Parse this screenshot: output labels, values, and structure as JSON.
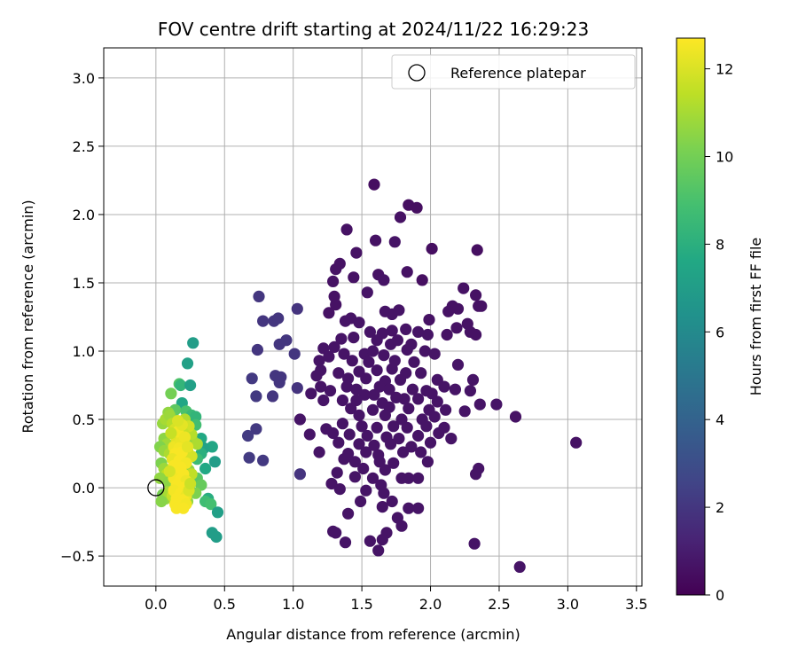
{
  "chart_data": {
    "type": "scatter",
    "title": "FOV centre drift starting at 2024/11/22 16:29:23",
    "xlabel": "Angular distance from reference (arcmin)",
    "ylabel": "Rotation from reference (arcmin)",
    "colorbar_label": "Hours from first FF file",
    "xlim": [
      -0.38,
      3.54
    ],
    "ylim": [
      -0.72,
      3.22
    ],
    "clim": [
      0,
      12.7
    ],
    "xticks": [
      0.0,
      0.5,
      1.0,
      1.5,
      2.0,
      2.5,
      3.0,
      3.5
    ],
    "xtick_labels": [
      "0.0",
      "0.5",
      "1.0",
      "1.5",
      "2.0",
      "2.5",
      "3.0",
      "3.5"
    ],
    "yticks": [
      -0.5,
      0.0,
      0.5,
      1.0,
      1.5,
      2.0,
      2.5,
      3.0
    ],
    "ytick_labels": [
      "−0.5",
      "0.0",
      "0.5",
      "1.0",
      "1.5",
      "2.0",
      "2.5",
      "3.0"
    ],
    "cticks": [
      0,
      2,
      4,
      6,
      8,
      10,
      12
    ],
    "ctick_labels": [
      "0",
      "2",
      "4",
      "6",
      "8",
      "10",
      "12"
    ],
    "colormap": "viridis",
    "grid": true,
    "legend": {
      "position": "top-right",
      "entries": [
        "Reference platepar"
      ]
    },
    "reference": {
      "x": 0.0,
      "y": 0.0
    },
    "points": [
      [
        1.59,
        2.22,
        0.5
      ],
      [
        1.84,
        2.07,
        0.5
      ],
      [
        1.9,
        2.05,
        0.5
      ],
      [
        1.78,
        1.98,
        0.6
      ],
      [
        2.01,
        1.75,
        0.5
      ],
      [
        2.34,
        1.74,
        0.5
      ],
      [
        1.39,
        1.89,
        0.6
      ],
      [
        1.46,
        1.72,
        0.6
      ],
      [
        1.6,
        1.81,
        0.6
      ],
      [
        1.74,
        1.8,
        0.7
      ],
      [
        1.34,
        1.64,
        0.6
      ],
      [
        1.31,
        1.6,
        0.6
      ],
      [
        1.62,
        1.56,
        0.6
      ],
      [
        1.66,
        1.52,
        0.7
      ],
      [
        1.44,
        1.54,
        0.6
      ],
      [
        1.29,
        1.51,
        0.6
      ],
      [
        1.83,
        1.58,
        0.6
      ],
      [
        1.94,
        1.52,
        0.5
      ],
      [
        2.24,
        1.46,
        0.6
      ],
      [
        2.33,
        1.41,
        0.6
      ],
      [
        1.54,
        1.43,
        0.7
      ],
      [
        1.3,
        1.4,
        0.6
      ],
      [
        1.31,
        1.34,
        0.6
      ],
      [
        2.16,
        1.33,
        0.6
      ],
      [
        2.35,
        1.33,
        0.6
      ],
      [
        2.2,
        1.31,
        0.6
      ],
      [
        1.77,
        1.3,
        0.7
      ],
      [
        1.67,
        1.29,
        0.7
      ],
      [
        1.72,
        1.27,
        0.7
      ],
      [
        1.26,
        1.28,
        0.6
      ],
      [
        1.42,
        1.24,
        0.7
      ],
      [
        1.38,
        1.22,
        0.7
      ],
      [
        1.48,
        1.21,
        0.7
      ],
      [
        1.99,
        1.23,
        0.6
      ],
      [
        2.27,
        1.2,
        0.6
      ],
      [
        1.56,
        1.14,
        0.7
      ],
      [
        1.65,
        1.13,
        0.7
      ],
      [
        1.72,
        1.15,
        0.7
      ],
      [
        1.82,
        1.16,
        0.7
      ],
      [
        1.91,
        1.14,
        0.7
      ],
      [
        2.12,
        1.12,
        0.6
      ],
      [
        2.19,
        1.17,
        0.6
      ],
      [
        2.33,
        1.12,
        0.6
      ],
      [
        2.29,
        1.14,
        0.6
      ],
      [
        1.35,
        1.09,
        0.7
      ],
      [
        1.44,
        1.1,
        0.7
      ],
      [
        1.61,
        1.08,
        0.7
      ],
      [
        1.71,
        1.05,
        0.7
      ],
      [
        1.76,
        1.08,
        0.7
      ],
      [
        1.86,
        1.05,
        0.7
      ],
      [
        1.98,
        1.12,
        0.7
      ],
      [
        1.3,
        1.03,
        0.7
      ],
      [
        1.22,
        1.02,
        0.7
      ],
      [
        1.37,
        0.98,
        0.7
      ],
      [
        1.52,
        0.98,
        0.7
      ],
      [
        1.58,
        1.0,
        0.7
      ],
      [
        1.66,
        0.97,
        0.7
      ],
      [
        1.83,
        1.01,
        0.7
      ],
      [
        1.96,
        1.0,
        0.7
      ],
      [
        2.03,
        0.98,
        0.7
      ],
      [
        1.26,
        0.96,
        0.7
      ],
      [
        1.19,
        0.93,
        0.7
      ],
      [
        1.43,
        0.93,
        0.7
      ],
      [
        1.55,
        0.92,
        0.7
      ],
      [
        1.74,
        0.93,
        0.7
      ],
      [
        1.88,
        0.92,
        0.7
      ],
      [
        2.2,
        0.9,
        0.7
      ],
      [
        1.2,
        0.86,
        0.7
      ],
      [
        1.33,
        0.84,
        0.7
      ],
      [
        1.48,
        0.85,
        0.7
      ],
      [
        1.61,
        0.86,
        0.7
      ],
      [
        1.72,
        0.87,
        0.7
      ],
      [
        1.82,
        0.84,
        0.7
      ],
      [
        1.93,
        0.84,
        0.7
      ],
      [
        1.17,
        0.82,
        0.7
      ],
      [
        1.4,
        0.8,
        0.7
      ],
      [
        1.53,
        0.8,
        0.7
      ],
      [
        1.67,
        0.78,
        0.7
      ],
      [
        1.78,
        0.79,
        0.7
      ],
      [
        2.05,
        0.79,
        0.7
      ],
      [
        2.31,
        0.79,
        0.7
      ],
      [
        1.2,
        0.74,
        0.7
      ],
      [
        1.39,
        0.74,
        0.7
      ],
      [
        1.46,
        0.72,
        0.7
      ],
      [
        1.63,
        0.74,
        0.7
      ],
      [
        1.7,
        0.72,
        0.7
      ],
      [
        1.87,
        0.72,
        0.7
      ],
      [
        1.97,
        0.71,
        0.7
      ],
      [
        2.1,
        0.74,
        0.7
      ],
      [
        2.18,
        0.72,
        0.7
      ],
      [
        1.27,
        0.71,
        0.7
      ],
      [
        1.52,
        0.68,
        0.7
      ],
      [
        1.59,
        0.68,
        0.7
      ],
      [
        1.75,
        0.66,
        0.7
      ],
      [
        1.81,
        0.65,
        0.7
      ],
      [
        2.01,
        0.69,
        0.7
      ],
      [
        2.29,
        0.71,
        0.7
      ],
      [
        1.13,
        0.69,
        0.7
      ],
      [
        1.36,
        0.64,
        0.7
      ],
      [
        1.46,
        0.64,
        0.7
      ],
      [
        1.65,
        0.62,
        0.7
      ],
      [
        1.91,
        0.65,
        0.7
      ],
      [
        2.05,
        0.63,
        0.7
      ],
      [
        1.22,
        0.64,
        0.7
      ],
      [
        1.42,
        0.58,
        0.7
      ],
      [
        1.58,
        0.57,
        0.7
      ],
      [
        1.7,
        0.59,
        0.7
      ],
      [
        1.84,
        0.58,
        0.7
      ],
      [
        1.99,
        0.57,
        0.7
      ],
      [
        2.11,
        0.57,
        0.7
      ],
      [
        2.25,
        0.56,
        0.7
      ],
      [
        2.36,
        0.61,
        0.7
      ],
      [
        2.48,
        0.61,
        0.7
      ],
      [
        1.48,
        0.53,
        0.7
      ],
      [
        1.67,
        0.53,
        0.7
      ],
      [
        1.79,
        0.5,
        0.7
      ],
      [
        1.94,
        0.5,
        0.7
      ],
      [
        2.03,
        0.52,
        0.7
      ],
      [
        1.05,
        0.5,
        0.7
      ],
      [
        1.12,
        0.39,
        0.7
      ],
      [
        1.24,
        0.43,
        0.7
      ],
      [
        1.36,
        0.47,
        0.7
      ],
      [
        1.5,
        0.45,
        0.7
      ],
      [
        1.61,
        0.44,
        0.7
      ],
      [
        1.73,
        0.45,
        0.7
      ],
      [
        1.83,
        0.44,
        0.7
      ],
      [
        1.97,
        0.45,
        0.7
      ],
      [
        2.1,
        0.44,
        0.7
      ],
      [
        1.29,
        0.4,
        0.7
      ],
      [
        1.41,
        0.39,
        0.7
      ],
      [
        1.54,
        0.38,
        0.7
      ],
      [
        1.68,
        0.37,
        0.7
      ],
      [
        1.77,
        0.36,
        0.7
      ],
      [
        1.91,
        0.38,
        0.7
      ],
      [
        2.06,
        0.4,
        0.7
      ],
      [
        2.15,
        0.36,
        0.7
      ],
      [
        1.33,
        0.33,
        0.7
      ],
      [
        1.48,
        0.32,
        0.7
      ],
      [
        1.59,
        0.31,
        0.7
      ],
      [
        1.71,
        0.32,
        0.7
      ],
      [
        1.86,
        0.3,
        0.7
      ],
      [
        2.0,
        0.33,
        0.7
      ],
      [
        1.19,
        0.26,
        0.7
      ],
      [
        1.4,
        0.25,
        0.7
      ],
      [
        1.53,
        0.26,
        0.7
      ],
      [
        1.62,
        0.24,
        0.7
      ],
      [
        1.8,
        0.26,
        0.7
      ],
      [
        1.93,
        0.26,
        0.7
      ],
      [
        1.37,
        0.21,
        0.7
      ],
      [
        1.45,
        0.19,
        0.7
      ],
      [
        1.63,
        0.19,
        0.7
      ],
      [
        1.73,
        0.18,
        0.7
      ],
      [
        1.98,
        0.19,
        0.7
      ],
      [
        1.51,
        0.14,
        0.7
      ],
      [
        1.67,
        0.13,
        0.7
      ],
      [
        1.32,
        0.11,
        0.7
      ],
      [
        1.45,
        0.08,
        0.7
      ],
      [
        1.58,
        0.07,
        0.7
      ],
      [
        1.84,
        0.07,
        0.7
      ],
      [
        1.91,
        0.07,
        0.7
      ],
      [
        1.79,
        0.07,
        0.7
      ],
      [
        1.28,
        0.03,
        0.7
      ],
      [
        1.64,
        0.02,
        0.7
      ],
      [
        1.34,
        -0.01,
        0.7
      ],
      [
        1.53,
        -0.02,
        0.7
      ],
      [
        1.66,
        -0.04,
        0.7
      ],
      [
        1.49,
        -0.1,
        0.7
      ],
      [
        1.72,
        -0.1,
        0.7
      ],
      [
        1.65,
        -0.14,
        0.7
      ],
      [
        1.84,
        -0.15,
        0.7
      ],
      [
        1.91,
        -0.15,
        0.7
      ],
      [
        1.4,
        -0.19,
        0.7
      ],
      [
        1.76,
        -0.22,
        0.7
      ],
      [
        1.79,
        -0.28,
        0.7
      ],
      [
        1.29,
        -0.32,
        0.7
      ],
      [
        1.31,
        -0.33,
        0.7
      ],
      [
        1.68,
        -0.33,
        0.7
      ],
      [
        1.65,
        -0.38,
        0.7
      ],
      [
        1.56,
        -0.39,
        0.7
      ],
      [
        1.38,
        -0.4,
        0.7
      ],
      [
        1.62,
        -0.46,
        0.7
      ],
      [
        2.32,
        -0.41,
        0.7
      ],
      [
        2.65,
        -0.58,
        0.7
      ],
      [
        3.06,
        0.33,
        0.6
      ],
      [
        2.35,
        0.14,
        0.7
      ],
      [
        2.33,
        0.1,
        0.7
      ],
      [
        2.62,
        0.52,
        0.6
      ],
      [
        2.37,
        1.33,
        0.6
      ],
      [
        2.13,
        1.29,
        0.6
      ],
      [
        0.75,
        1.4,
        2.0
      ],
      [
        0.78,
        1.22,
        2.0
      ],
      [
        0.86,
        1.22,
        2.0
      ],
      [
        0.89,
        1.24,
        2.0
      ],
      [
        1.03,
        1.31,
        1.9
      ],
      [
        0.74,
        1.01,
        2.0
      ],
      [
        0.9,
        1.05,
        2.0
      ],
      [
        0.95,
        1.08,
        2.0
      ],
      [
        1.01,
        0.98,
        2.0
      ],
      [
        0.87,
        0.82,
        2.0
      ],
      [
        0.91,
        0.81,
        2.0
      ],
      [
        0.7,
        0.8,
        2.1
      ],
      [
        0.9,
        0.77,
        2.0
      ],
      [
        0.73,
        0.67,
        2.1
      ],
      [
        0.85,
        0.67,
        2.0
      ],
      [
        1.03,
        0.73,
        1.9
      ],
      [
        0.73,
        0.43,
        2.1
      ],
      [
        0.67,
        0.38,
        2.2
      ],
      [
        0.68,
        0.22,
        2.2
      ],
      [
        0.78,
        0.2,
        2.1
      ],
      [
        1.05,
        0.1,
        1.9
      ],
      [
        0.27,
        1.06,
        7.0
      ],
      [
        0.23,
        0.91,
        7.2
      ],
      [
        0.17,
        0.76,
        9.2
      ],
      [
        0.18,
        0.75,
        8.3
      ],
      [
        0.25,
        0.75,
        7.2
      ],
      [
        0.11,
        0.69,
        10.0
      ],
      [
        0.19,
        0.62,
        7.5
      ],
      [
        0.14,
        0.57,
        9.5
      ],
      [
        0.22,
        0.56,
        9.0
      ],
      [
        0.26,
        0.53,
        8.5
      ],
      [
        0.29,
        0.52,
        8.3
      ],
      [
        0.09,
        0.55,
        10.6
      ],
      [
        0.21,
        0.5,
        11.2
      ],
      [
        0.29,
        0.46,
        8.8
      ],
      [
        0.22,
        0.43,
        11.0
      ],
      [
        0.33,
        0.36,
        7.6
      ],
      [
        0.41,
        0.3,
        7.5
      ],
      [
        0.35,
        0.29,
        7.3
      ],
      [
        0.33,
        0.25,
        8.0
      ],
      [
        0.3,
        0.21,
        8.6
      ],
      [
        0.43,
        0.19,
        7.0
      ],
      [
        0.36,
        0.14,
        7.6
      ],
      [
        0.3,
        0.07,
        9.4
      ],
      [
        0.33,
        0.02,
        9.7
      ],
      [
        0.38,
        -0.08,
        7.9
      ],
      [
        0.36,
        -0.1,
        8.7
      ],
      [
        0.4,
        -0.12,
        8.9
      ],
      [
        0.45,
        -0.18,
        7.1
      ],
      [
        0.41,
        -0.33,
        7.0
      ],
      [
        0.44,
        -0.36,
        7.0
      ],
      [
        0.23,
        -0.1,
        10.7
      ],
      [
        0.29,
        -0.04,
        10.2
      ],
      [
        0.05,
        0.47,
        10.7
      ],
      [
        0.07,
        0.5,
        11.0
      ],
      [
        0.1,
        0.53,
        10.8
      ],
      [
        0.12,
        0.47,
        11.3
      ],
      [
        0.06,
        0.36,
        10.5
      ],
      [
        0.08,
        0.32,
        10.9
      ],
      [
        0.03,
        0.3,
        10.3
      ],
      [
        0.06,
        0.27,
        10.7
      ],
      [
        0.1,
        0.25,
        11.1
      ],
      [
        0.04,
        0.18,
        10.2
      ],
      [
        0.06,
        0.14,
        10.8
      ],
      [
        0.08,
        0.1,
        11.4
      ],
      [
        0.03,
        0.07,
        10.6
      ],
      [
        0.09,
        0.04,
        10.5
      ],
      [
        0.05,
        -0.05,
        10.1
      ],
      [
        0.07,
        -0.08,
        10.7
      ],
      [
        0.04,
        -0.1,
        10.4
      ],
      [
        0.09,
        -0.03,
        11.0
      ],
      [
        0.12,
        -0.06,
        11.6
      ],
      [
        0.24,
        0.13,
        10.6
      ],
      [
        0.26,
        0.1,
        11.5
      ],
      [
        0.27,
        0.34,
        10.5
      ],
      [
        0.26,
        0.39,
        11.3
      ],
      [
        0.24,
        0.45,
        11.8
      ],
      [
        0.2,
        0.4,
        11.6
      ],
      [
        0.3,
        0.32,
        11.1
      ],
      [
        0.23,
        0.27,
        11.8
      ],
      [
        0.21,
        0.22,
        12.2
      ],
      [
        0.26,
        0.23,
        11.9
      ],
      [
        0.14,
        0.43,
        11.9
      ],
      [
        0.15,
        0.36,
        12.1
      ],
      [
        0.13,
        0.3,
        12.4
      ],
      [
        0.18,
        0.34,
        12.3
      ],
      [
        0.17,
        0.29,
        12.5
      ],
      [
        0.14,
        0.25,
        12.6
      ],
      [
        0.19,
        0.26,
        12.6
      ],
      [
        0.12,
        0.21,
        12.3
      ],
      [
        0.17,
        0.2,
        12.6
      ],
      [
        0.22,
        0.18,
        12.5
      ],
      [
        0.13,
        0.16,
        12.6
      ],
      [
        0.18,
        0.15,
        12.6
      ],
      [
        0.15,
        0.11,
        12.6
      ],
      [
        0.2,
        0.1,
        12.6
      ],
      [
        0.13,
        0.07,
        12.5
      ],
      [
        0.18,
        0.06,
        12.6
      ],
      [
        0.22,
        0.05,
        12.4
      ],
      [
        0.15,
        0.02,
        12.6
      ],
      [
        0.2,
        0.0,
        12.6
      ],
      [
        0.13,
        -0.02,
        12.5
      ],
      [
        0.18,
        -0.04,
        12.6
      ],
      [
        0.22,
        -0.06,
        12.4
      ],
      [
        0.15,
        -0.08,
        12.6
      ],
      [
        0.2,
        -0.09,
        12.6
      ],
      [
        0.14,
        -0.12,
        12.6
      ],
      [
        0.18,
        -0.13,
        12.6
      ],
      [
        0.22,
        -0.12,
        12.5
      ],
      [
        0.15,
        -0.15,
        12.6
      ],
      [
        0.2,
        -0.15,
        12.6
      ],
      [
        0.16,
        0.41,
        12.5
      ],
      [
        0.21,
        0.37,
        12.4
      ],
      [
        0.19,
        0.46,
        12.2
      ],
      [
        0.16,
        0.49,
        12.0
      ],
      [
        0.23,
        0.3,
        12.2
      ],
      [
        0.11,
        0.4,
        11.6
      ],
      [
        0.1,
        0.12,
        11.9
      ],
      [
        0.24,
        -0.02,
        12.0
      ],
      [
        0.25,
        0.03,
        11.7
      ]
    ]
  }
}
